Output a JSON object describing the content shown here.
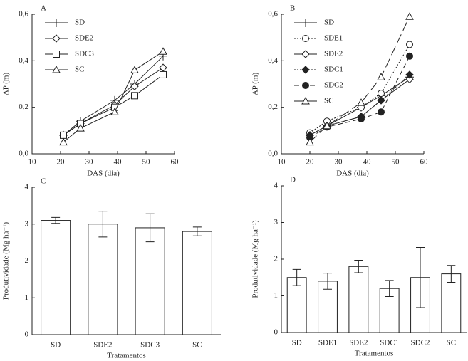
{
  "chart_data": [
    {
      "type": "line",
      "title": "A",
      "x_label": "DAS (dia)",
      "y_label": "AP (m)",
      "x": [
        21,
        27,
        39,
        46,
        56
      ],
      "xlim": [
        10,
        60
      ],
      "xticks": [
        10,
        20,
        30,
        40,
        50,
        60
      ],
      "ylim": [
        0,
        0.6
      ],
      "yticks": [
        {
          "value": 0,
          "label": "0,0"
        },
        {
          "value": 0.2,
          "label": "0,2"
        },
        {
          "value": 0.4,
          "label": "0,4"
        },
        {
          "value": 0.6,
          "label": "0,6"
        }
      ],
      "legend": "top-left",
      "series": [
        {
          "name": "SD",
          "color": "#222222",
          "marker": "plus",
          "marker_fill": "none",
          "dash": "solid",
          "values": [
            0.08,
            0.14,
            0.23,
            0.3,
            0.42
          ]
        },
        {
          "name": "SDE2",
          "color": "#222222",
          "marker": "diamond",
          "marker_fill": "#ffffff",
          "dash": "solid",
          "values": [
            0.08,
            0.13,
            0.21,
            0.29,
            0.37
          ]
        },
        {
          "name": "SDC3",
          "color": "#222222",
          "marker": "square",
          "marker_fill": "#ffffff",
          "dash": "solid",
          "values": [
            0.08,
            0.13,
            0.2,
            0.25,
            0.34
          ]
        },
        {
          "name": "SC",
          "color": "#222222",
          "marker": "triangle",
          "marker_fill": "#ffffff",
          "dash": "solid",
          "values": [
            0.05,
            0.11,
            0.18,
            0.36,
            0.44
          ]
        }
      ]
    },
    {
      "type": "line",
      "title": "B",
      "x_label": "DAS (dia)",
      "y_label": "AP (m)",
      "x": [
        20,
        26,
        38,
        45,
        55
      ],
      "xlim": [
        10,
        60
      ],
      "xticks": [
        10,
        20,
        30,
        40,
        50,
        60
      ],
      "ylim": [
        0,
        0.6
      ],
      "yticks": [
        {
          "value": 0,
          "label": "0,0"
        },
        {
          "value": 0.2,
          "label": "0,2"
        },
        {
          "value": 0.4,
          "label": "0,4"
        },
        {
          "value": 0.6,
          "label": "0,6"
        }
      ],
      "legend": "top-left",
      "series": [
        {
          "name": "SD",
          "color": "#222222",
          "marker": "plus",
          "marker_fill": "none",
          "dash": "solid",
          "values": [
            0.08,
            0.12,
            0.2,
            0.25,
            0.33
          ]
        },
        {
          "name": "SDE1",
          "color": "#222222",
          "marker": "circle",
          "marker_fill": "#ffffff",
          "dash": "dotted",
          "values": [
            0.09,
            0.14,
            0.2,
            0.26,
            0.47
          ]
        },
        {
          "name": "SDE2",
          "color": "#222222",
          "marker": "diamond",
          "marker_fill": "#ffffff",
          "dash": "solid",
          "values": [
            0.08,
            0.12,
            0.16,
            0.23,
            0.32
          ]
        },
        {
          "name": "SDC1",
          "color": "#222222",
          "marker": "diamond",
          "marker_fill": "#222222",
          "dash": "dotted",
          "values": [
            0.08,
            0.12,
            0.16,
            0.23,
            0.34
          ]
        },
        {
          "name": "SDC2",
          "color": "#222222",
          "marker": "circle",
          "marker_fill": "#222222",
          "dash": "dashed",
          "values": [
            0.07,
            0.115,
            0.15,
            0.18,
            0.42
          ]
        },
        {
          "name": "SC",
          "color": "#222222",
          "marker": "triangle",
          "marker_fill": "#ffffff",
          "dash": "long-dashed",
          "values": [
            0.05,
            0.12,
            0.22,
            0.33,
            0.59
          ]
        }
      ]
    },
    {
      "type": "bar",
      "title": "C",
      "x_label": "Tratamentos",
      "y_label": "Produtividade (Mg ha⁻¹)",
      "categories": [
        "SD",
        "SDE2",
        "SDC3",
        "SC"
      ],
      "values": [
        3.1,
        3.0,
        2.9,
        2.8
      ],
      "errors": [
        0.08,
        0.35,
        0.38,
        0.12
      ],
      "color": "#ffffff",
      "ylim": [
        0,
        4
      ],
      "yticks": [
        0,
        1,
        2,
        3,
        4
      ]
    },
    {
      "type": "bar",
      "title": "D",
      "x_label": "Tratamentos",
      "y_label": "Produtividade (Mg ha⁻¹)",
      "categories": [
        "SD",
        "SDE1",
        "SDE2",
        "SDC1",
        "SDC2",
        "SC"
      ],
      "values": [
        1.5,
        1.4,
        1.8,
        1.2,
        1.5,
        1.6
      ],
      "errors": [
        0.22,
        0.22,
        0.17,
        0.22,
        0.82,
        0.23
      ],
      "color": "#ffffff",
      "ylim": [
        0,
        4
      ],
      "yticks": [
        0,
        1,
        2,
        3,
        4
      ]
    }
  ]
}
